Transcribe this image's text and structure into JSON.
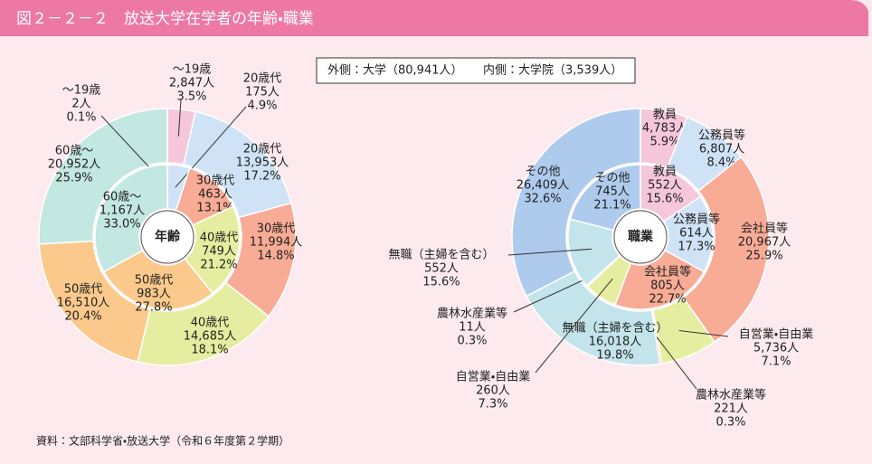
{
  "header": {
    "title": "図２－２－２　放送大学在学者の年齢・職業"
  },
  "source": "資料：文部科学省・放送大学（令和６年度第２学期）",
  "chart_data": [
    {
      "type": "donut",
      "center_label": "年齢",
      "categories": [
        "～19歳",
        "20歳代",
        "30歳代",
        "40歳代",
        "50歳代",
        "60歳～"
      ],
      "colors": [
        "#f6c6da",
        "#cfe2f6",
        "#f8ab95",
        "#e5eea0",
        "#fbc98c",
        "#c3e7e1"
      ],
      "series": [
        {
          "name": "外側：大学（80,941人）",
          "ring": "outer",
          "values": [
            2847,
            13953,
            11994,
            14685,
            16510,
            20952
          ],
          "value_labels": [
            "2,847人",
            "13,953人",
            "11,994人",
            "14,685人",
            "16,510人",
            "20,952人"
          ],
          "percent_labels": [
            "3.5%",
            "17.2%",
            "14.8%",
            "18.1%",
            "20.4%",
            "25.9%"
          ]
        },
        {
          "name": "内側：大学院（3,539人）",
          "ring": "inner",
          "values": [
            2,
            175,
            463,
            749,
            983,
            1167
          ],
          "value_labels": [
            "2人",
            "175人",
            "463人",
            "749人",
            "983人",
            "1,167人"
          ],
          "percent_labels": [
            "0.1%",
            "4.9%",
            "13.1%",
            "21.2%",
            "27.8%",
            "33.0%"
          ]
        }
      ]
    },
    {
      "type": "donut",
      "center_label": "職業",
      "categories": [
        "教員",
        "公務員等",
        "会社員等",
        "自営業・自由業",
        "農林水産業等",
        "無職（主婦を含む）",
        "その他"
      ],
      "colors": [
        "#f6c6da",
        "#cfe2f6",
        "#f8ab95",
        "#e5eea0",
        "#fbc98c",
        "#c3e4ea",
        "#aecbee"
      ],
      "series": [
        {
          "ring": "outer",
          "values": [
            4783,
            6807,
            20967,
            5736,
            221,
            16018,
            26409
          ],
          "value_labels": [
            "4,783人",
            "6,807人",
            "20,967人",
            "5,736人",
            "221人",
            "16,018人",
            "26,409人"
          ],
          "percent_labels": [
            "5.9%",
            "8.4%",
            "25.9%",
            "7.1%",
            "0.3%",
            "19.8%",
            "32.6%"
          ]
        },
        {
          "ring": "inner",
          "values": [
            552,
            614,
            805,
            260,
            11,
            552,
            745
          ],
          "value_labels": [
            "552人",
            "614人",
            "805人",
            "260人",
            "11人",
            "552人",
            "745人"
          ],
          "percent_labels": [
            "15.6%",
            "17.3%",
            "22.7%",
            "7.3%",
            "0.3%",
            "15.6%",
            "21.1%"
          ]
        }
      ]
    }
  ]
}
